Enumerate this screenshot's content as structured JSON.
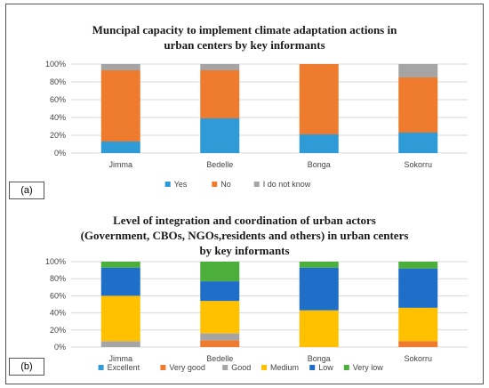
{
  "chart_data": [
    {
      "type": "bar",
      "stacked": true,
      "panel_label": "(a)",
      "title_lines": [
        "Muncipal capacity to implement climate adaptation actions in",
        "urban centers by key informants"
      ],
      "categories": [
        "Jimma",
        "Bedelle",
        "Bonga",
        "Sokorru"
      ],
      "series": [
        {
          "name": "Yes",
          "color": "#2e9bd6",
          "values": [
            13,
            39,
            21,
            23
          ]
        },
        {
          "name": "No",
          "color": "#ef7b2f",
          "values": [
            80,
            54,
            79,
            62
          ]
        },
        {
          "name": "I do not know",
          "color": "#a5a5a5",
          "values": [
            7,
            7,
            0,
            15
          ]
        }
      ],
      "ylim": [
        0,
        100
      ],
      "yticks": [
        "0%",
        "20%",
        "40%",
        "60%",
        "80%",
        "100%"
      ],
      "grid": true,
      "legend_position": "bottom"
    },
    {
      "type": "bar",
      "stacked": true,
      "panel_label": "(b)",
      "title_lines": [
        "Level of integration and coordination of urban actors",
        "(Government, CBOs, NGOs,residents and others) in urban centers",
        "by key informants"
      ],
      "categories": [
        "Jimma",
        "Bedelle",
        "Bonga",
        "Sokorru"
      ],
      "series": [
        {
          "name": "Excellent",
          "color": "#2e9bd6",
          "values": [
            0,
            0,
            0,
            0
          ]
        },
        {
          "name": "Very good",
          "color": "#ef7b2f",
          "values": [
            0,
            8,
            0,
            7
          ]
        },
        {
          "name": "Good",
          "color": "#a5a5a5",
          "values": [
            7,
            8,
            0,
            0
          ]
        },
        {
          "name": "Medium",
          "color": "#ffc000",
          "values": [
            53,
            38,
            43,
            39
          ]
        },
        {
          "name": "Low",
          "color": "#1f6fc9",
          "values": [
            33,
            23,
            50,
            46
          ]
        },
        {
          "name": "Very low",
          "color": "#4caf3c",
          "values": [
            7,
            23,
            7,
            8
          ]
        }
      ],
      "ylim": [
        0,
        100
      ],
      "yticks": [
        "0%",
        "20%",
        "40%",
        "60%",
        "80%",
        "100%"
      ],
      "grid": true,
      "legend_position": "bottom"
    }
  ]
}
